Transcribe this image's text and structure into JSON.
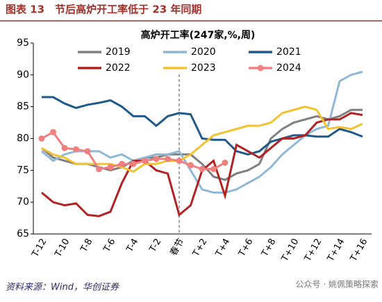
{
  "header": "图表 13　节后高炉开工率低于 23 年同期",
  "chart_data": {
    "type": "line",
    "title": "高炉开工率(247家,%,周)",
    "categories": [
      "T-12",
      null,
      "T-10",
      null,
      "T-8",
      null,
      "T-6",
      null,
      "T-4",
      null,
      "T-2",
      null,
      "春节",
      null,
      "T+2",
      null,
      "T+4",
      null,
      "T+6",
      null,
      "T+8",
      null,
      "T+10",
      null,
      "T+12",
      null,
      "T+14",
      null,
      "T+16"
    ],
    "ylim": [
      65,
      95
    ],
    "yticks": [
      65,
      70,
      75,
      80,
      85,
      90,
      95
    ],
    "series": [
      {
        "name": "2019",
        "color": "#7f7f7f",
        "values": [
          78.5,
          77,
          76.5,
          76,
          76,
          75.5,
          75,
          75.5,
          76.5,
          77,
          77,
          77.5,
          77.5,
          77.5,
          76,
          74,
          73.5,
          74.5,
          75,
          76,
          80,
          81.5,
          82.5,
          83,
          83.5,
          83,
          83.5,
          84.5,
          84.5
        ]
      },
      {
        "name": "2020",
        "color": "#8fb8d6",
        "values": [
          78,
          76.5,
          77.5,
          78,
          78,
          78,
          77,
          77.5,
          76.5,
          77,
          77.5,
          77.5,
          78,
          75,
          72,
          71.5,
          71.5,
          72,
          73,
          74,
          75.5,
          77.5,
          79,
          80.5,
          81.5,
          82,
          89,
          90,
          90.5
        ]
      },
      {
        "name": "2021",
        "color": "#1f5a8a",
        "values": [
          86.5,
          86.5,
          85.5,
          84.8,
          85.3,
          85.6,
          86,
          85,
          83.5,
          83.5,
          82,
          83.5,
          84,
          83.8,
          80,
          79.8,
          79.8,
          78,
          77.5,
          78,
          79.5,
          80,
          80.5,
          80.5,
          80.3,
          80.3,
          81.5,
          81,
          80.3
        ]
      },
      {
        "name": "2022",
        "color": "#b22222",
        "values": [
          71.5,
          70,
          69.5,
          69.8,
          68,
          67.8,
          68.5,
          73,
          76.5,
          76.5,
          75,
          74.5,
          68,
          69.5,
          75,
          76.5,
          71,
          79,
          78,
          77,
          78.5,
          80,
          80,
          80.5,
          82.5,
          83,
          83,
          84,
          83.7
        ]
      },
      {
        "name": "2023",
        "color": "#f2c230",
        "values": [
          78.5,
          77.5,
          77,
          76,
          76,
          76,
          76,
          75.5,
          74.8,
          76,
          76,
          76.5,
          76.5,
          77.5,
          79,
          80.5,
          81,
          81.5,
          82,
          82,
          82.5,
          84,
          84.5,
          85,
          84.5,
          81.5,
          81.8,
          81.5,
          82.3
        ]
      },
      {
        "name": "2024",
        "color": "#f08080",
        "marker": true,
        "values": [
          80,
          81,
          78.5,
          78.3,
          78,
          75.2,
          75.5,
          76,
          76,
          76.5,
          76.8,
          76.8,
          76.5,
          75.8,
          75.2,
          75.2,
          76.2,
          null,
          null,
          null,
          null,
          null,
          null,
          null,
          null,
          null,
          null,
          null,
          null
        ]
      }
    ]
  },
  "source": "资料来源：Wind，华创证券",
  "watermark": "公众号 · 姚佩策略探索"
}
